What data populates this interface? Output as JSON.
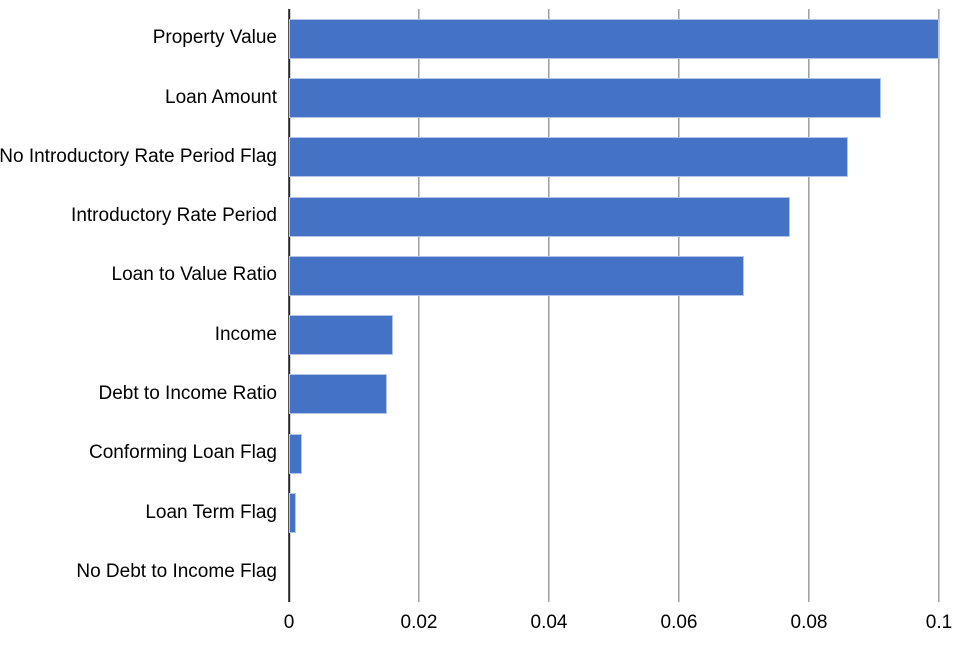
{
  "chart_data": {
    "type": "bar",
    "orientation": "horizontal",
    "title": "",
    "xlabel": "",
    "ylabel": "",
    "categories": [
      "Property Value",
      "Loan Amount",
      "No Introductory Rate Period Flag",
      "Introductory Rate Period",
      "Loan to Value Ratio",
      "Income",
      "Debt to Income Ratio",
      "Conforming Loan Flag",
      "Loan Term Flag",
      "No Debt to Income Flag"
    ],
    "values": [
      0.1,
      0.091,
      0.086,
      0.077,
      0.07,
      0.016,
      0.015,
      0.002,
      0.001,
      0
    ],
    "xlim": [
      0,
      0.1
    ],
    "xticks": [
      0,
      0.02,
      0.04,
      0.06,
      0.08,
      0.1
    ],
    "xtick_labels": [
      "0",
      "0.02",
      "0.04",
      "0.06",
      "0.08",
      "0.1"
    ],
    "grid": "vertical-only",
    "legend": "none",
    "colors": {
      "bar_fill": "#4472C4",
      "bar_border": "#B3C6E9",
      "gridline": "#6E6E6E",
      "axis_line": "#262626",
      "text": "#000000",
      "background": "#FFFFFF"
    }
  }
}
